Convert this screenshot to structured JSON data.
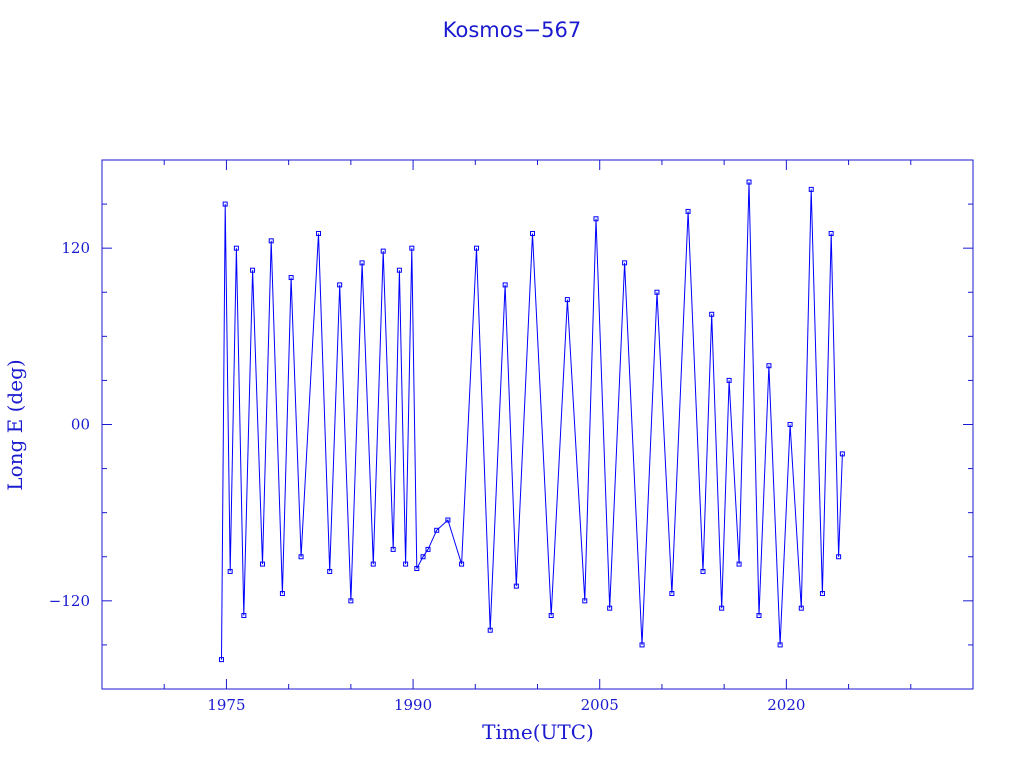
{
  "chart_data": {
    "type": "line",
    "title": "Kosmos−567",
    "xlabel": "Time(UTC)",
    "ylabel": "Long E (deg)",
    "xlim": [
      1965,
      2035
    ],
    "ylim": [
      -180,
      180
    ],
    "x_ticks": [
      {
        "value": 1975,
        "label": "1975"
      },
      {
        "value": 1990,
        "label": "1990"
      },
      {
        "value": 2005,
        "label": "2005"
      },
      {
        "value": 2020,
        "label": "2020"
      }
    ],
    "y_ticks": [
      {
        "value": 120,
        "label": "120"
      },
      {
        "value": 0,
        "label": "00"
      },
      {
        "value": -120,
        "label": "−120"
      }
    ],
    "series": [
      {
        "color": "#0000ff",
        "marker": "square",
        "x": [
          1974.6,
          1974.9,
          1975.3,
          1975.8,
          1976.4,
          1977.1,
          1977.9,
          1978.6,
          1979.5,
          1980.2,
          1981.0,
          1982.4,
          1983.3,
          1984.1,
          1985.0,
          1985.9,
          1986.8,
          1987.6,
          1988.4,
          1988.9,
          1989.4,
          1989.9,
          1990.3,
          1990.8,
          1991.2,
          1991.9,
          1992.8,
          1993.9,
          1995.1,
          1996.2,
          1997.4,
          1998.3,
          1999.6,
          2001.1,
          2002.4,
          2003.8,
          2004.7,
          2005.8,
          2007.0,
          2008.4,
          2009.6,
          2010.8,
          2012.1,
          2013.3,
          2014.0,
          2014.8,
          2015.4,
          2016.2,
          2017.0,
          2017.8,
          2018.6,
          2019.5,
          2020.3,
          2021.2,
          2022.0,
          2022.9,
          2023.6,
          2024.2,
          2024.5
        ],
        "y": [
          -160,
          150,
          -100,
          120,
          -130,
          105,
          -95,
          125,
          -115,
          100,
          -90,
          130,
          -100,
          95,
          -120,
          110,
          -95,
          118,
          -85,
          105,
          -95,
          120,
          -98,
          -90,
          -85,
          -72,
          -65,
          -95,
          120,
          -140,
          95,
          -110,
          130,
          -130,
          85,
          -120,
          140,
          -125,
          110,
          -150,
          90,
          -115,
          145,
          -100,
          75,
          -125,
          30,
          -95,
          165,
          -130,
          40,
          -150,
          0,
          -125,
          160,
          -115,
          130,
          -90,
          -20
        ]
      }
    ]
  }
}
